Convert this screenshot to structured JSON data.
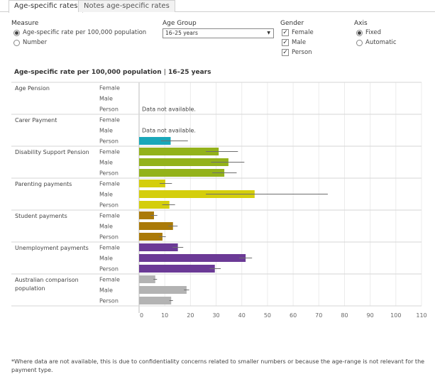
{
  "tabs": [
    {
      "label": "Age-specific rates",
      "active": true
    },
    {
      "label": "Notes age-specific rates",
      "active": false
    }
  ],
  "controls": {
    "measure": {
      "title": "Measure",
      "options": [
        {
          "label": "Age-specific rate per 100,000 population",
          "selected": true
        },
        {
          "label": "Number",
          "selected": false
        }
      ]
    },
    "age_group": {
      "title": "Age Group",
      "selected": "16–25 years"
    },
    "gender": {
      "title": "Gender",
      "options": [
        {
          "label": "Female",
          "checked": true
        },
        {
          "label": "Male",
          "checked": true
        },
        {
          "label": "Person",
          "checked": true
        }
      ]
    },
    "axis": {
      "title": "Axis",
      "options": [
        {
          "label": "Fixed",
          "selected": true
        },
        {
          "label": "Automatic",
          "selected": false
        }
      ]
    }
  },
  "chart_header": {
    "measure": "Age-specific rate per 100,000 population",
    "separator": "|",
    "age": "16–25 years"
  },
  "chart_data": {
    "type": "bar",
    "orientation": "horizontal",
    "xlim": [
      0,
      110
    ],
    "xticks": [
      0,
      10,
      20,
      30,
      40,
      50,
      60,
      70,
      80,
      90,
      100,
      110
    ],
    "grid": true,
    "not_available_label": "Data not available.",
    "groups": [
      {
        "name": "Age Pension",
        "color": "#1aa7b9",
        "bars": [
          {
            "gender": "Female",
            "value": null,
            "ci": null
          },
          {
            "gender": "Male",
            "value": null,
            "ci": null
          },
          {
            "gender": "Person",
            "value": null,
            "ci": null,
            "note": "Data not available."
          }
        ]
      },
      {
        "name": "Carer Payment",
        "color": "#1aa7b9",
        "bars": [
          {
            "gender": "Female",
            "value": null,
            "ci": null
          },
          {
            "gender": "Male",
            "value": null,
            "ci": null,
            "note": "Data not available."
          },
          {
            "gender": "Person",
            "value": 12.3,
            "ci": [
              8.5,
              19
            ]
          }
        ]
      },
      {
        "name": "Disability Support Pension",
        "color": "#93b21a",
        "bars": [
          {
            "gender": "Female",
            "value": 31,
            "ci": [
              26,
              38.5
            ]
          },
          {
            "gender": "Male",
            "value": 34.8,
            "ci": [
              28,
              41
            ]
          },
          {
            "gender": "Person",
            "value": 33.2,
            "ci": [
              28.5,
              38
            ]
          }
        ]
      },
      {
        "name": "Parenting payments",
        "color": "#d4ce0c",
        "bars": [
          {
            "gender": "Female",
            "value": 10.2,
            "ci": [
              8,
              12.8
            ]
          },
          {
            "gender": "Male",
            "value": 45,
            "ci": [
              26,
              73.5
            ]
          },
          {
            "gender": "Person",
            "value": 11.8,
            "ci": [
              9,
              14
            ]
          }
        ]
      },
      {
        "name": "Student payments",
        "color": "#aa7a08",
        "bars": [
          {
            "gender": "Female",
            "value": 5.8,
            "ci": [
              4.5,
              7.1
            ]
          },
          {
            "gender": "Male",
            "value": 13.2,
            "ci": [
              11.4,
              15
            ]
          },
          {
            "gender": "Person",
            "value": 9.1,
            "ci": [
              7.8,
              10.4
            ]
          }
        ]
      },
      {
        "name": "Unemployment payments",
        "color": "#6b3a96",
        "bars": [
          {
            "gender": "Female",
            "value": 15.1,
            "ci": [
              13,
              17.2
            ]
          },
          {
            "gender": "Male",
            "value": 41.5,
            "ci": [
              39,
              44
            ]
          },
          {
            "gender": "Person",
            "value": 29.5,
            "ci": [
              27.5,
              31.8
            ]
          }
        ]
      },
      {
        "name": "Australian comparison population",
        "color": "#b3b3b3",
        "bars": [
          {
            "gender": "Female",
            "value": 6.3,
            "ci": [
              5.6,
              7
            ]
          },
          {
            "gender": "Male",
            "value": 18.5,
            "ci": [
              17.5,
              19.5
            ]
          },
          {
            "gender": "Person",
            "value": 12.5,
            "ci": [
              11.8,
              13.2
            ]
          }
        ]
      }
    ]
  },
  "footnote": "*Where data are not available, this is due to confidentiality concerns related to smaller numbers or because the age-range is not relevant for the payment type."
}
